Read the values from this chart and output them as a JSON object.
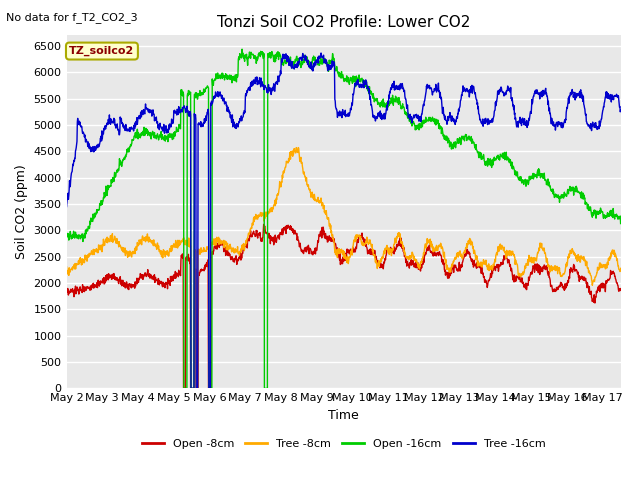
{
  "title": "Tonzi Soil CO2 Profile: Lower CO2",
  "subtitle": "No data for f_T2_CO2_3",
  "xlabel": "Time",
  "ylabel": "Soil CO2 (ppm)",
  "ylim": [
    0,
    6700
  ],
  "yticks": [
    0,
    500,
    1000,
    1500,
    2000,
    2500,
    3000,
    3500,
    4000,
    4500,
    5000,
    5500,
    6000,
    6500
  ],
  "legend_label": "TZ_soilco2",
  "series_labels": [
    "Open -8cm",
    "Tree -8cm",
    "Open -16cm",
    "Tree -16cm"
  ],
  "series_colors": [
    "#cc0000",
    "#ffaa00",
    "#00cc00",
    "#0000cc"
  ],
  "background_color": "#ffffff",
  "plot_bg_color": "#e8e8e8",
  "grid_color": "#ffffff",
  "title_fontsize": 11,
  "axis_fontsize": 9,
  "tick_fontsize": 8,
  "x_day_labels": [
    "May 2",
    "May 3",
    "May 4",
    "May 5",
    "May 6",
    "May 7",
    "May 8",
    "May 9",
    "May 10",
    "May 11",
    "May 12",
    "May 13",
    "May 14",
    "May 15",
    "May 16",
    "May 17"
  ],
  "n_days": 15.5
}
